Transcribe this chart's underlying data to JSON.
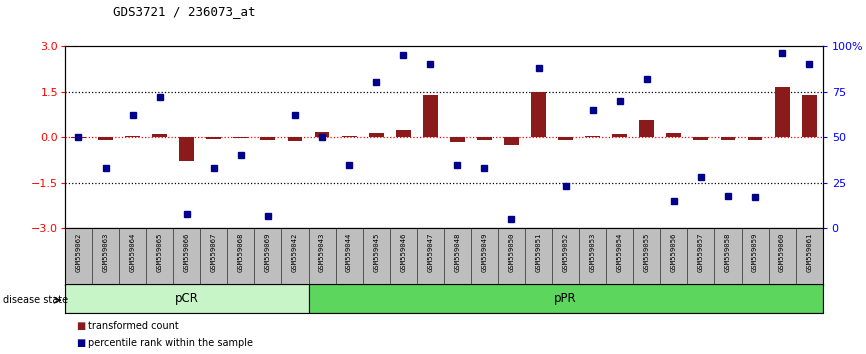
{
  "title": "GDS3721 / 236073_at",
  "samples": [
    "GSM559062",
    "GSM559063",
    "GSM559064",
    "GSM559065",
    "GSM559066",
    "GSM559067",
    "GSM559068",
    "GSM559069",
    "GSM559042",
    "GSM559043",
    "GSM559044",
    "GSM559045",
    "GSM559046",
    "GSM559047",
    "GSM559048",
    "GSM559049",
    "GSM559050",
    "GSM559051",
    "GSM559052",
    "GSM559053",
    "GSM559054",
    "GSM559055",
    "GSM559056",
    "GSM559057",
    "GSM559058",
    "GSM559059",
    "GSM559060",
    "GSM559061"
  ],
  "transformed_count": [
    -0.02,
    -0.08,
    0.05,
    0.12,
    -0.8,
    -0.05,
    -0.03,
    -0.08,
    -0.12,
    0.18,
    0.05,
    0.15,
    0.22,
    1.4,
    -0.15,
    -0.08,
    -0.25,
    1.5,
    -0.1,
    0.05,
    0.1,
    0.55,
    0.15,
    -0.08,
    -0.1,
    -0.08,
    1.65,
    1.4
  ],
  "percentile_rank": [
    50,
    33,
    62,
    72,
    8,
    33,
    40,
    7,
    62,
    50,
    35,
    80,
    95,
    90,
    35,
    33,
    5,
    88,
    23,
    65,
    70,
    82,
    15,
    28,
    18,
    17,
    96,
    90
  ],
  "pcr_count": 9,
  "ppr_count": 19,
  "bar_color": "#8B1A1A",
  "dot_color": "#00008B",
  "pcr_color": "#C8F5C8",
  "ppr_color": "#5CD65C",
  "bg_color": "#ffffff",
  "ylim_left": [
    -3,
    3
  ],
  "ylim_right": [
    0,
    100
  ],
  "yticks_left": [
    -3,
    -1.5,
    0,
    1.5,
    3
  ],
  "yticks_right": [
    0,
    25,
    50,
    75,
    100
  ],
  "dotted_lines_black": [
    -1.5,
    1.5
  ],
  "zero_line_color": "red"
}
